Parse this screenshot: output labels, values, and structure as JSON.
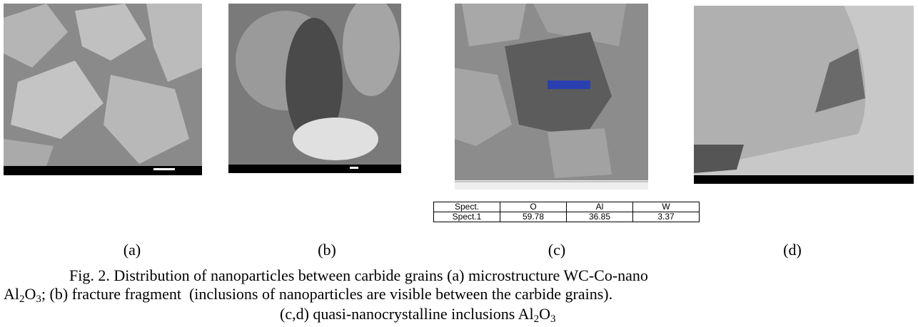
{
  "panels": {
    "labels": [
      "(a)",
      "(b)",
      "(c)",
      "(d)"
    ]
  },
  "table": {
    "header": [
      "Spect.",
      "O",
      "Al",
      "W"
    ],
    "rows": [
      [
        "Spect.1",
        59.78,
        36.85,
        3.37
      ]
    ]
  },
  "caption": {
    "lines": [
      [
        "Fig. 2. Distribution of nanoparticles between carbide grains (a) microstructure WC-Co-nano"
      ],
      [
        "Al",
        {
          "text": "2",
          "sub": true
        },
        "O",
        {
          "text": "3",
          "sub": true
        },
        "; (b) fracture fragment  (inclusions of nanoparticles are visible between the carbide grains)."
      ],
      [
        "(c,d) quasi-nanocrystalline inclusions Al",
        {
          "text": "2",
          "sub": true
        },
        "O",
        {
          "text": "3",
          "sub": true
        }
      ]
    ]
  }
}
